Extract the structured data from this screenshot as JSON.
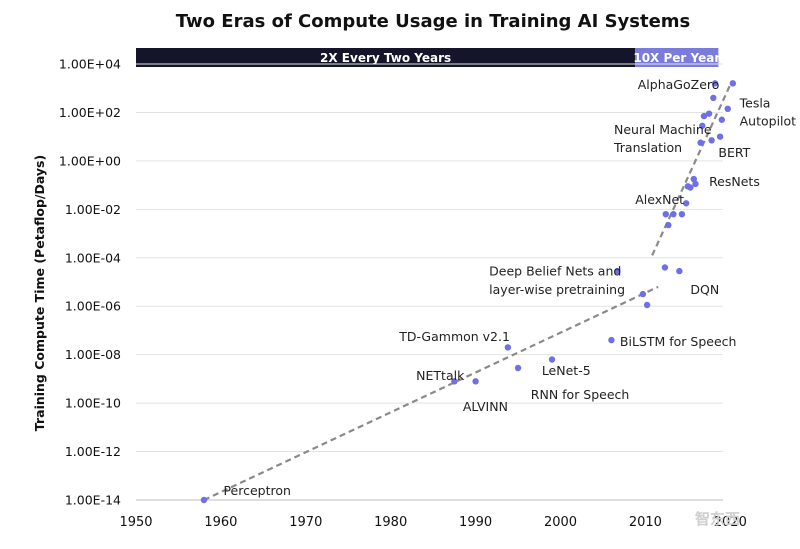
{
  "chart_data": {
    "type": "scatter",
    "title": "Two Eras of Compute Usage in Training AI Systems",
    "xlabel": "",
    "ylabel": "Training Compute Time (Petaflop/Days)",
    "xlim": [
      1950,
      2021
    ],
    "ylim_log10": [
      -14,
      4
    ],
    "x_ticks": [
      1950,
      1960,
      1970,
      1980,
      1990,
      2000,
      2010,
      2020
    ],
    "y_ticks": [
      {
        "exp": 4,
        "label": "1.00E+04"
      },
      {
        "exp": 2,
        "label": "1.00E+02"
      },
      {
        "exp": 0,
        "label": "1.00E+00"
      },
      {
        "exp": -2,
        "label": "1.00E-02"
      },
      {
        "exp": -4,
        "label": "1.00E-04"
      },
      {
        "exp": -6,
        "label": "1.00E-06"
      },
      {
        "exp": -8,
        "label": "1.00E-08"
      },
      {
        "exp": -10,
        "label": "1.00E-10"
      },
      {
        "exp": -12,
        "label": "1.00E-12"
      },
      {
        "exp": -14,
        "label": "1.00E-14"
      }
    ],
    "eras": [
      {
        "label": "2X Every Two Years",
        "x_start": 1950,
        "x_end": 2008.8,
        "color": "#14142a"
      },
      {
        "label": "10X Per Year",
        "x_start": 2008.8,
        "x_end": 2018.6,
        "color": "#7b7bdc"
      }
    ],
    "trend_lines": [
      {
        "name": "2X Every Two Years",
        "x": [
          1958,
          2011.5
        ],
        "y_log10": [
          -14,
          -5.2
        ]
      },
      {
        "name": "10X Per Year",
        "x": [
          2010.8,
          2020.2
        ],
        "y_log10": [
          -3.9,
          3.3
        ]
      }
    ],
    "point_color": "#6f6fe6",
    "points": [
      {
        "x": 1958,
        "y_log10": -14
      },
      {
        "x": 1987.5,
        "y_log10": -9.1
      },
      {
        "x": 1990,
        "y_log10": -9.1
      },
      {
        "x": 1993.8,
        "y_log10": -7.7
      },
      {
        "x": 1995,
        "y_log10": -8.55
      },
      {
        "x": 1999,
        "y_log10": -8.2
      },
      {
        "x": 2006,
        "y_log10": -7.4
      },
      {
        "x": 2006.7,
        "y_log10": -4.55
      },
      {
        "x": 2009.7,
        "y_log10": -5.5
      },
      {
        "x": 2010.2,
        "y_log10": -5.95
      },
      {
        "x": 2012.3,
        "y_log10": -4.4
      },
      {
        "x": 2012.4,
        "y_log10": -2.2
      },
      {
        "x": 2012.7,
        "y_log10": -2.65
      },
      {
        "x": 2013.3,
        "y_log10": -2.2
      },
      {
        "x": 2014,
        "y_log10": -4.55
      },
      {
        "x": 2014.3,
        "y_log10": -2.2
      },
      {
        "x": 2014.8,
        "y_log10": -1.75
      },
      {
        "x": 2015,
        "y_log10": -1.05
      },
      {
        "x": 2015.3,
        "y_log10": -1.1
      },
      {
        "x": 2015.7,
        "y_log10": -0.75
      },
      {
        "x": 2015.9,
        "y_log10": -0.95
      },
      {
        "x": 2016.5,
        "y_log10": 0.75
      },
      {
        "x": 2016.7,
        "y_log10": 1.45
      },
      {
        "x": 2016.9,
        "y_log10": 1.85
      },
      {
        "x": 2017.5,
        "y_log10": 1.95
      },
      {
        "x": 2017.8,
        "y_log10": 0.85
      },
      {
        "x": 2018.0,
        "y_log10": 2.6
      },
      {
        "x": 2018.2,
        "y_log10": 3.2
      },
      {
        "x": 2018.8,
        "y_log10": 1.0
      },
      {
        "x": 2019.0,
        "y_log10": 1.7
      },
      {
        "x": 2019.7,
        "y_log10": 2.15
      },
      {
        "x": 2020.3,
        "y_log10": 3.2
      }
    ],
    "annotations": [
      {
        "text": "Perceptron",
        "x": 1960.3,
        "y_log10": -13.6,
        "anchor": "start"
      },
      {
        "text": "NETtalk",
        "x": 1983.0,
        "y_log10": -8.85,
        "anchor": "start"
      },
      {
        "text": "ALVINN",
        "x": 1988.5,
        "y_log10": -10.15,
        "anchor": "start"
      },
      {
        "text": "TD-Gammon v2.1",
        "x": 1981.0,
        "y_log10": -7.25,
        "anchor": "start"
      },
      {
        "text": "LeNet-5",
        "x": 1997.8,
        "y_log10": -8.65,
        "anchor": "start"
      },
      {
        "text": "RNN for Speech",
        "x": 1996.5,
        "y_log10": -9.65,
        "anchor": "start"
      },
      {
        "text": "BiLSTM for Speech",
        "x": 2007.0,
        "y_log10": -7.45,
        "anchor": "start"
      },
      {
        "text": "Deep Belief Nets and",
        "x": 1991.6,
        "y_log10": -4.55,
        "anchor": "start"
      },
      {
        "text": "layer-wise pretraining",
        "x": 1991.6,
        "y_log10": -5.3,
        "anchor": "start"
      },
      {
        "text": "DQN",
        "x": 2015.3,
        "y_log10": -5.3,
        "anchor": "start"
      },
      {
        "text": "AlexNet",
        "x": 2008.8,
        "y_log10": -1.6,
        "anchor": "start"
      },
      {
        "text": "ResNets",
        "x": 2017.5,
        "y_log10": -0.85,
        "anchor": "start"
      },
      {
        "text": "Neural Machine",
        "x": 2006.3,
        "y_log10": 1.3,
        "anchor": "start"
      },
      {
        "text": "Translation",
        "x": 2006.3,
        "y_log10": 0.55,
        "anchor": "start"
      },
      {
        "text": "BERT",
        "x": 2018.6,
        "y_log10": 0.35,
        "anchor": "start"
      },
      {
        "text": "AlphaGoZero",
        "x": 2009.1,
        "y_log10": 3.15,
        "anchor": "start"
      },
      {
        "text": "Tesla",
        "x": 2021.1,
        "y_log10": 2.4,
        "anchor": "start"
      },
      {
        "text": "Autopilot",
        "x": 2021.1,
        "y_log10": 1.65,
        "anchor": "start"
      }
    ]
  },
  "watermark": {
    "text": "智东西"
  }
}
